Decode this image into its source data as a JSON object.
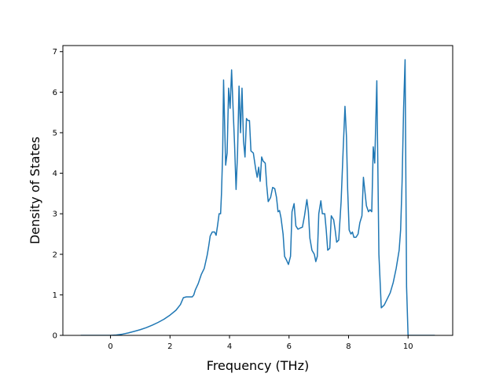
{
  "chart_data": {
    "type": "line",
    "title": "",
    "xlabel": "Frequency (THz)",
    "ylabel": "Density of States",
    "xlim": [
      -1.6,
      11.5
    ],
    "ylim": [
      0,
      7.15
    ],
    "xticks": [
      0,
      2,
      4,
      6,
      8,
      10
    ],
    "yticks": [
      0,
      1,
      2,
      3,
      4,
      5,
      6,
      7
    ],
    "grid": false,
    "legend": "none",
    "colors": {
      "line": "#1f77b4",
      "axes": "#000000",
      "background": "#ffffff"
    },
    "series": [
      {
        "name": "",
        "points": [
          [
            -1.0,
            0.0
          ],
          [
            0.0,
            0.0
          ],
          [
            0.2,
            0.01
          ],
          [
            0.4,
            0.03
          ],
          [
            0.6,
            0.06
          ],
          [
            0.8,
            0.1
          ],
          [
            1.0,
            0.14
          ],
          [
            1.2,
            0.19
          ],
          [
            1.4,
            0.25
          ],
          [
            1.6,
            0.32
          ],
          [
            1.8,
            0.4
          ],
          [
            2.0,
            0.5
          ],
          [
            2.2,
            0.62
          ],
          [
            2.35,
            0.76
          ],
          [
            2.45,
            0.93
          ],
          [
            2.55,
            0.95
          ],
          [
            2.65,
            0.95
          ],
          [
            2.75,
            0.95
          ],
          [
            2.8,
            1.0
          ],
          [
            2.85,
            1.12
          ],
          [
            2.95,
            1.28
          ],
          [
            3.05,
            1.5
          ],
          [
            3.15,
            1.65
          ],
          [
            3.25,
            1.98
          ],
          [
            3.3,
            2.2
          ],
          [
            3.35,
            2.45
          ],
          [
            3.42,
            2.55
          ],
          [
            3.5,
            2.55
          ],
          [
            3.55,
            2.47
          ],
          [
            3.6,
            2.72
          ],
          [
            3.65,
            3.0
          ],
          [
            3.7,
            3.0
          ],
          [
            3.73,
            3.5
          ],
          [
            3.77,
            4.5
          ],
          [
            3.8,
            6.3
          ],
          [
            3.83,
            5.4
          ],
          [
            3.87,
            4.2
          ],
          [
            3.92,
            4.5
          ],
          [
            3.97,
            6.1
          ],
          [
            4.02,
            5.6
          ],
          [
            4.07,
            6.55
          ],
          [
            4.12,
            5.6
          ],
          [
            4.17,
            4.7
          ],
          [
            4.22,
            3.6
          ],
          [
            4.27,
            4.5
          ],
          [
            4.32,
            6.15
          ],
          [
            4.37,
            5.0
          ],
          [
            4.42,
            6.1
          ],
          [
            4.47,
            4.8
          ],
          [
            4.52,
            4.4
          ],
          [
            4.57,
            5.35
          ],
          [
            4.62,
            5.3
          ],
          [
            4.67,
            5.3
          ],
          [
            4.72,
            4.55
          ],
          [
            4.8,
            4.5
          ],
          [
            4.88,
            4.1
          ],
          [
            4.93,
            3.9
          ],
          [
            4.98,
            4.15
          ],
          [
            5.03,
            3.8
          ],
          [
            5.08,
            4.4
          ],
          [
            5.13,
            4.3
          ],
          [
            5.2,
            4.25
          ],
          [
            5.25,
            3.7
          ],
          [
            5.3,
            3.3
          ],
          [
            5.38,
            3.4
          ],
          [
            5.45,
            3.65
          ],
          [
            5.52,
            3.62
          ],
          [
            5.58,
            3.4
          ],
          [
            5.63,
            3.05
          ],
          [
            5.68,
            3.08
          ],
          [
            5.73,
            2.9
          ],
          [
            5.8,
            2.5
          ],
          [
            5.85,
            1.95
          ],
          [
            5.92,
            1.85
          ],
          [
            5.98,
            1.75
          ],
          [
            6.05,
            1.95
          ],
          [
            6.1,
            3.05
          ],
          [
            6.17,
            3.25
          ],
          [
            6.23,
            2.7
          ],
          [
            6.3,
            2.62
          ],
          [
            6.38,
            2.65
          ],
          [
            6.45,
            2.67
          ],
          [
            6.52,
            2.95
          ],
          [
            6.6,
            3.35
          ],
          [
            6.65,
            3.05
          ],
          [
            6.7,
            2.4
          ],
          [
            6.77,
            2.1
          ],
          [
            6.85,
            2.0
          ],
          [
            6.9,
            1.82
          ],
          [
            6.95,
            1.95
          ],
          [
            7.0,
            3.0
          ],
          [
            7.07,
            3.32
          ],
          [
            7.12,
            3.0
          ],
          [
            7.2,
            3.0
          ],
          [
            7.25,
            2.6
          ],
          [
            7.3,
            2.1
          ],
          [
            7.37,
            2.15
          ],
          [
            7.42,
            2.95
          ],
          [
            7.5,
            2.85
          ],
          [
            7.55,
            2.6
          ],
          [
            7.6,
            2.3
          ],
          [
            7.67,
            2.35
          ],
          [
            7.75,
            3.3
          ],
          [
            7.82,
            4.6
          ],
          [
            7.88,
            5.65
          ],
          [
            7.93,
            4.9
          ],
          [
            7.97,
            3.6
          ],
          [
            8.02,
            2.6
          ],
          [
            8.08,
            2.5
          ],
          [
            8.13,
            2.55
          ],
          [
            8.18,
            2.42
          ],
          [
            8.25,
            2.42
          ],
          [
            8.32,
            2.5
          ],
          [
            8.38,
            2.78
          ],
          [
            8.45,
            2.95
          ],
          [
            8.5,
            3.9
          ],
          [
            8.55,
            3.55
          ],
          [
            8.6,
            3.2
          ],
          [
            8.67,
            3.05
          ],
          [
            8.72,
            3.1
          ],
          [
            8.78,
            3.05
          ],
          [
            8.83,
            4.65
          ],
          [
            8.88,
            4.25
          ],
          [
            8.95,
            6.28
          ],
          [
            9.02,
            2.0
          ],
          [
            9.1,
            0.68
          ],
          [
            9.2,
            0.75
          ],
          [
            9.3,
            0.9
          ],
          [
            9.4,
            1.05
          ],
          [
            9.5,
            1.3
          ],
          [
            9.6,
            1.65
          ],
          [
            9.7,
            2.1
          ],
          [
            9.75,
            2.6
          ],
          [
            9.8,
            3.8
          ],
          [
            9.85,
            5.6
          ],
          [
            9.9,
            6.8
          ],
          [
            9.95,
            1.2
          ],
          [
            10.0,
            0.0
          ],
          [
            10.5,
            0.0
          ],
          [
            10.9,
            0.0
          ]
        ]
      }
    ]
  }
}
